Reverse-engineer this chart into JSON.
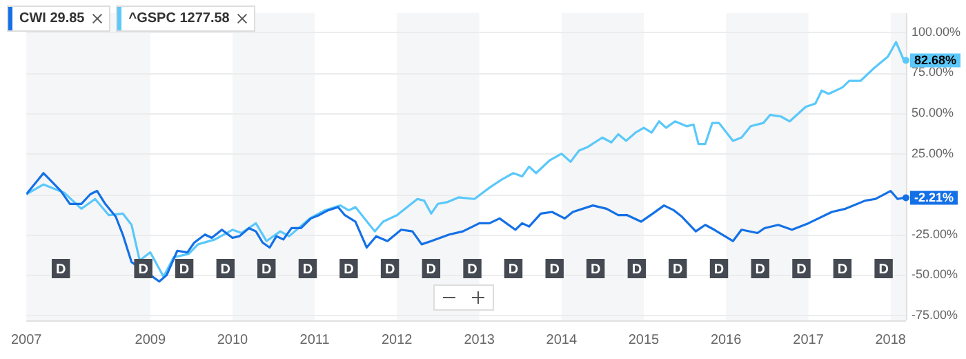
{
  "chart_data": {
    "type": "line",
    "legend": "top left",
    "grid": "y",
    "marker": "none",
    "line_style": "solid",
    "xlim": [
      "2007-07-01",
      "2018-03-10"
    ],
    "ylim": [
      -78,
      112
    ],
    "xticks": [
      {
        "value": "2007-07-01",
        "label": "2007"
      },
      {
        "value": "2009-01-01",
        "label": "2009"
      },
      {
        "value": "2010-01-01",
        "label": "2010"
      },
      {
        "value": "2011-01-01",
        "label": "2011"
      },
      {
        "value": "2012-01-01",
        "label": "2012"
      },
      {
        "value": "2013-01-01",
        "label": "2013"
      },
      {
        "value": "2014-01-01",
        "label": "2014"
      },
      {
        "value": "2015-01-01",
        "label": "2015"
      },
      {
        "value": "2016-01-01",
        "label": "2016"
      },
      {
        "value": "2017-01-01",
        "label": "2017"
      },
      {
        "value": "2018-01-01",
        "label": "2018"
      }
    ],
    "yticks": [
      {
        "value": -75,
        "label": "-75.00%"
      },
      {
        "value": -50,
        "label": "-50.00%"
      },
      {
        "value": -25,
        "label": "-25.00%"
      },
      {
        "value": 0,
        "label": null
      },
      {
        "value": 25,
        "label": "25.00%"
      },
      {
        "value": 50,
        "label": "50.00%"
      },
      {
        "value": 75,
        "label": "75.00%"
      },
      {
        "value": 100,
        "label": "100.00%"
      }
    ],
    "bands": [
      {
        "axis": "x",
        "from": "2007-07-01",
        "to": "2009-01-01",
        "color": "#f5f6f7"
      },
      {
        "axis": "x",
        "from": "2010-01-01",
        "to": "2011-01-01",
        "color": "#f5f6f7"
      },
      {
        "axis": "x",
        "from": "2012-01-01",
        "to": "2013-01-01",
        "color": "#f5f6f7"
      },
      {
        "axis": "x",
        "from": "2014-01-01",
        "to": "2015-01-01",
        "color": "#f5f6f7"
      },
      {
        "axis": "x",
        "from": "2016-01-01",
        "to": "2017-01-01",
        "color": "#f5f6f7"
      },
      {
        "axis": "x",
        "from": "2018-01-01",
        "to": "2018-03-10",
        "color": "#f5f6f7"
      }
    ],
    "series": [
      {
        "name": "CWI 29.85",
        "color": "#1470e6",
        "x": [
          "2007-07-01",
          "2007-09-15",
          "2007-12-01",
          "2008-01-10",
          "2008-03-01",
          "2008-04-10",
          "2008-05-10",
          "2008-06-15",
          "2008-08-01",
          "2008-09-01",
          "2008-10-10",
          "2008-11-15",
          "2009-01-01",
          "2009-02-10",
          "2009-03-15",
          "2009-05-01",
          "2009-06-15",
          "2009-07-15",
          "2009-09-01",
          "2009-10-01",
          "2009-11-15",
          "2010-01-01",
          "2010-02-01",
          "2010-03-15",
          "2010-04-15",
          "2010-05-15",
          "2010-06-15",
          "2010-07-15",
          "2010-08-15",
          "2010-09-20",
          "2010-11-01",
          "2010-12-15",
          "2011-01-20",
          "2011-03-01",
          "2011-04-15",
          "2011-05-15",
          "2011-07-01",
          "2011-08-20",
          "2011-10-01",
          "2011-11-20",
          "2012-01-20",
          "2012-03-10",
          "2012-04-20",
          "2012-06-01",
          "2012-08-20",
          "2012-10-20",
          "2013-01-01",
          "2013-02-15",
          "2013-04-01",
          "2013-06-10",
          "2013-07-10",
          "2013-08-10",
          "2013-10-01",
          "2013-11-20",
          "2014-01-15",
          "2014-02-20",
          "2014-05-20",
          "2014-07-20",
          "2014-09-10",
          "2014-10-20",
          "2014-12-20",
          "2015-02-10",
          "2015-04-01",
          "2015-05-15",
          "2015-06-20",
          "2015-08-20",
          "2015-10-01",
          "2015-11-10",
          "2016-02-01",
          "2016-03-10",
          "2016-05-20",
          "2016-06-20",
          "2016-08-20",
          "2016-10-20",
          "2017-01-01",
          "2017-04-15",
          "2017-06-15",
          "2017-09-10",
          "2017-10-25",
          "2018-01-01",
          "2018-02-01",
          "2018-03-01"
        ],
        "values": [
          0,
          13,
          2,
          -6,
          -6,
          0,
          2,
          -6,
          -14,
          -25,
          -42,
          null,
          -50,
          -54,
          -50,
          -35,
          -36,
          -30,
          -25,
          -27,
          -22,
          -27,
          -26,
          -21,
          -23,
          -30,
          -33,
          -26,
          -28,
          -21,
          -21,
          -15,
          -13,
          -10,
          -8,
          -13,
          -17,
          -33,
          -26,
          -29,
          -22,
          -23,
          -31,
          -29,
          -25,
          -23,
          -18,
          -18,
          -15,
          -22,
          -18,
          -20,
          -12,
          -11,
          -15,
          -11,
          -7,
          -9,
          -13,
          -13,
          -17,
          -12,
          -7,
          -10,
          -14,
          -23,
          -19,
          -22,
          -29,
          -22,
          -24,
          -21,
          -19,
          -22,
          -18,
          -11,
          -9,
          -4,
          -3,
          2,
          -3,
          -2.21
        ]
      },
      {
        "name": "^GSPC 1277.58",
        "color": "#5ac8fa",
        "x": [
          "2007-07-01",
          "2007-09-15",
          "2007-12-15",
          "2008-03-01",
          "2008-05-01",
          "2008-07-01",
          "2008-09-01",
          "2008-10-10",
          "2008-11-15",
          "2009-01-01",
          "2009-03-01",
          "2009-04-15",
          "2009-06-20",
          "2009-08-01",
          "2009-10-15",
          "2010-01-01",
          "2010-02-10",
          "2010-04-15",
          "2010-06-01",
          "2010-08-01",
          "2010-09-10",
          "2010-12-10",
          "2011-02-15",
          "2011-04-25",
          "2011-06-01",
          "2011-07-01",
          "2011-09-25",
          "2011-11-01",
          "2012-01-01",
          "2012-04-01",
          "2012-05-01",
          "2012-06-01",
          "2012-07-01",
          "2012-08-10",
          "2012-10-01",
          "2012-12-10",
          "2013-02-15",
          "2013-04-10",
          "2013-06-01",
          "2013-07-10",
          "2013-08-10",
          "2013-09-10",
          "2013-11-10",
          "2014-01-01",
          "2014-02-10",
          "2014-03-20",
          "2014-04-25",
          "2014-07-01",
          "2014-08-10",
          "2014-09-10",
          "2014-10-15",
          "2014-11-25",
          "2015-01-01",
          "2015-02-05",
          "2015-03-10",
          "2015-04-10",
          "2015-05-20",
          "2015-07-10",
          "2015-08-10",
          "2015-09-01",
          "2015-10-01",
          "2015-11-01",
          "2015-12-01",
          "2016-02-01",
          "2016-03-10",
          "2016-04-20",
          "2016-06-15",
          "2016-07-15",
          "2016-09-01",
          "2016-10-10",
          "2016-12-20",
          "2017-02-01",
          "2017-03-01",
          "2017-04-01",
          "2017-06-01",
          "2017-07-01",
          "2017-08-20",
          "2017-10-20",
          "2017-12-20",
          "2018-01-25",
          "2018-03-01"
        ],
        "values": [
          0,
          6,
          1,
          -9,
          -3,
          -13,
          -12,
          -19,
          -41,
          -36,
          -51,
          -39,
          -37,
          -31,
          -28,
          -22,
          -24,
          -18,
          -29,
          -23,
          -26,
          -15,
          -10,
          -7,
          -10,
          -8,
          -23,
          -17,
          -13,
          -3,
          -4,
          -12,
          -6,
          -5,
          -2,
          -3,
          4,
          9,
          13,
          11,
          17,
          13,
          21,
          25,
          20,
          27,
          29,
          35,
          32,
          37,
          33,
          38,
          41,
          38,
          45,
          41,
          45,
          42,
          43,
          31,
          31,
          44,
          44,
          33,
          35,
          42,
          44,
          49,
          48,
          45,
          54,
          56,
          64,
          62,
          66,
          70,
          70,
          78,
          85,
          94,
          82.68
        ]
      }
    ],
    "annotations": [
      {
        "text": "D",
        "x": "2007-12-01",
        "y": -46
      },
      {
        "text": "D",
        "x": "2008-12-01",
        "y": -46
      },
      {
        "text": "D",
        "x": "2009-06-01",
        "y": -46
      },
      {
        "text": "D",
        "x": "2009-12-01",
        "y": -46
      },
      {
        "text": "D",
        "x": "2010-06-01",
        "y": -46
      },
      {
        "text": "D",
        "x": "2010-12-01",
        "y": -46
      },
      {
        "text": "D",
        "x": "2011-06-01",
        "y": -46
      },
      {
        "text": "D",
        "x": "2011-12-01",
        "y": -46
      },
      {
        "text": "D",
        "x": "2012-06-01",
        "y": -46
      },
      {
        "text": "D",
        "x": "2012-12-01",
        "y": -46
      },
      {
        "text": "D",
        "x": "2013-06-01",
        "y": -46
      },
      {
        "text": "D",
        "x": "2013-12-01",
        "y": -46
      },
      {
        "text": "D",
        "x": "2014-06-01",
        "y": -46
      },
      {
        "text": "D",
        "x": "2014-12-01",
        "y": -46
      },
      {
        "text": "D",
        "x": "2015-06-01",
        "y": -46
      },
      {
        "text": "D",
        "x": "2015-12-01",
        "y": -46
      },
      {
        "text": "D",
        "x": "2016-06-01",
        "y": -46
      },
      {
        "text": "D",
        "x": "2016-12-01",
        "y": -46
      },
      {
        "text": "D",
        "x": "2017-06-01",
        "y": -46
      },
      {
        "text": "D",
        "x": "2017-12-01",
        "y": -46
      },
      {
        "text": "-2.21%",
        "x": "2018-03-10",
        "y": -2.21
      },
      {
        "text": "82.68%",
        "x": "2018-03-10",
        "y": 82.68
      }
    ]
  }
}
